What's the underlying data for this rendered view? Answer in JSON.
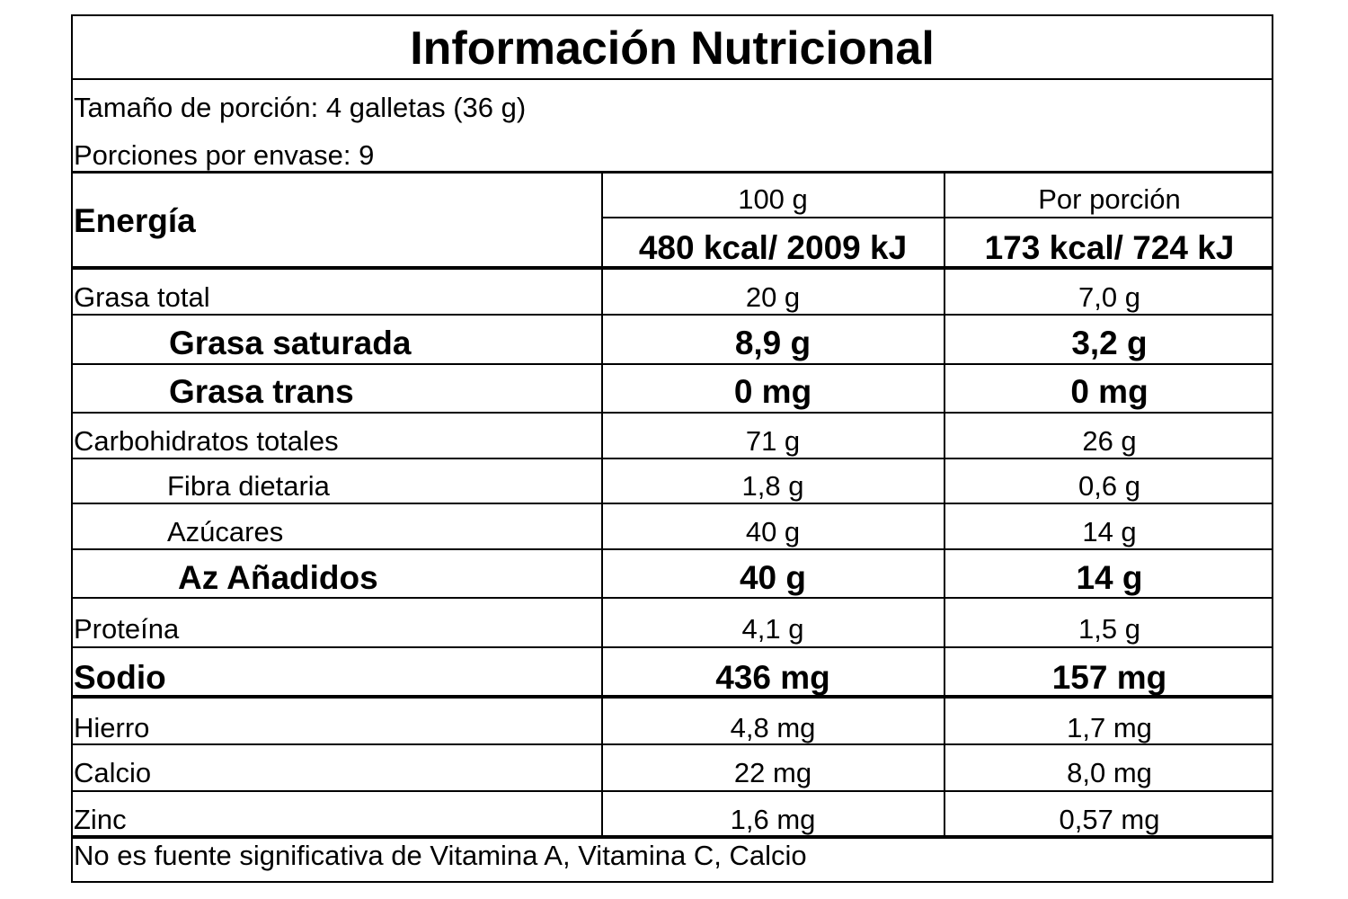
{
  "title": "Información Nutricional",
  "serving_size": "Tamaño de porción: 4 galletas (36 g)",
  "servings_per_container": "Porciones por envase: 9",
  "header": {
    "energy_label": "Energía",
    "col_100g": "100 g",
    "col_portion": "Por porción",
    "energy_100g": "480 kcal/ 2009 kJ",
    "energy_portion": "173 kcal/ 724 kJ"
  },
  "rows": [
    {
      "label": "Grasa total",
      "v100": "20 g",
      "vportion": "7,0 g"
    },
    {
      "label": "Grasa saturada",
      "v100": "8,9 g",
      "vportion": "3,2 g"
    },
    {
      "label": "Grasa trans",
      "v100": "0 mg",
      "vportion": "0 mg"
    },
    {
      "label": "Carbohidratos totales",
      "v100": "71 g",
      "vportion": "26 g"
    },
    {
      "label": "Fibra dietaria",
      "v100": "1,8 g",
      "vportion": "0,6 g"
    },
    {
      "label": "Azúcares",
      "v100": "40 g",
      "vportion": "14 g"
    },
    {
      "label": "Az Añadidos",
      "v100": "40 g",
      "vportion": "14 g"
    },
    {
      "label": "Proteína",
      "v100": "4,1 g",
      "vportion": "1,5 g"
    },
    {
      "label": "Sodio",
      "v100": "436 mg",
      "vportion": "157 mg"
    },
    {
      "label": "Hierro",
      "v100": "4,8 mg",
      "vportion": "1,7 mg"
    },
    {
      "label": "Calcio",
      "v100": "22 mg",
      "vportion": "8,0 mg"
    },
    {
      "label": "Zinc",
      "v100": "1,6 mg",
      "vportion": "0,57 mg"
    }
  ],
  "footnote": "No es fuente significativa de Vitamina A, Vitamina C, Calcio"
}
